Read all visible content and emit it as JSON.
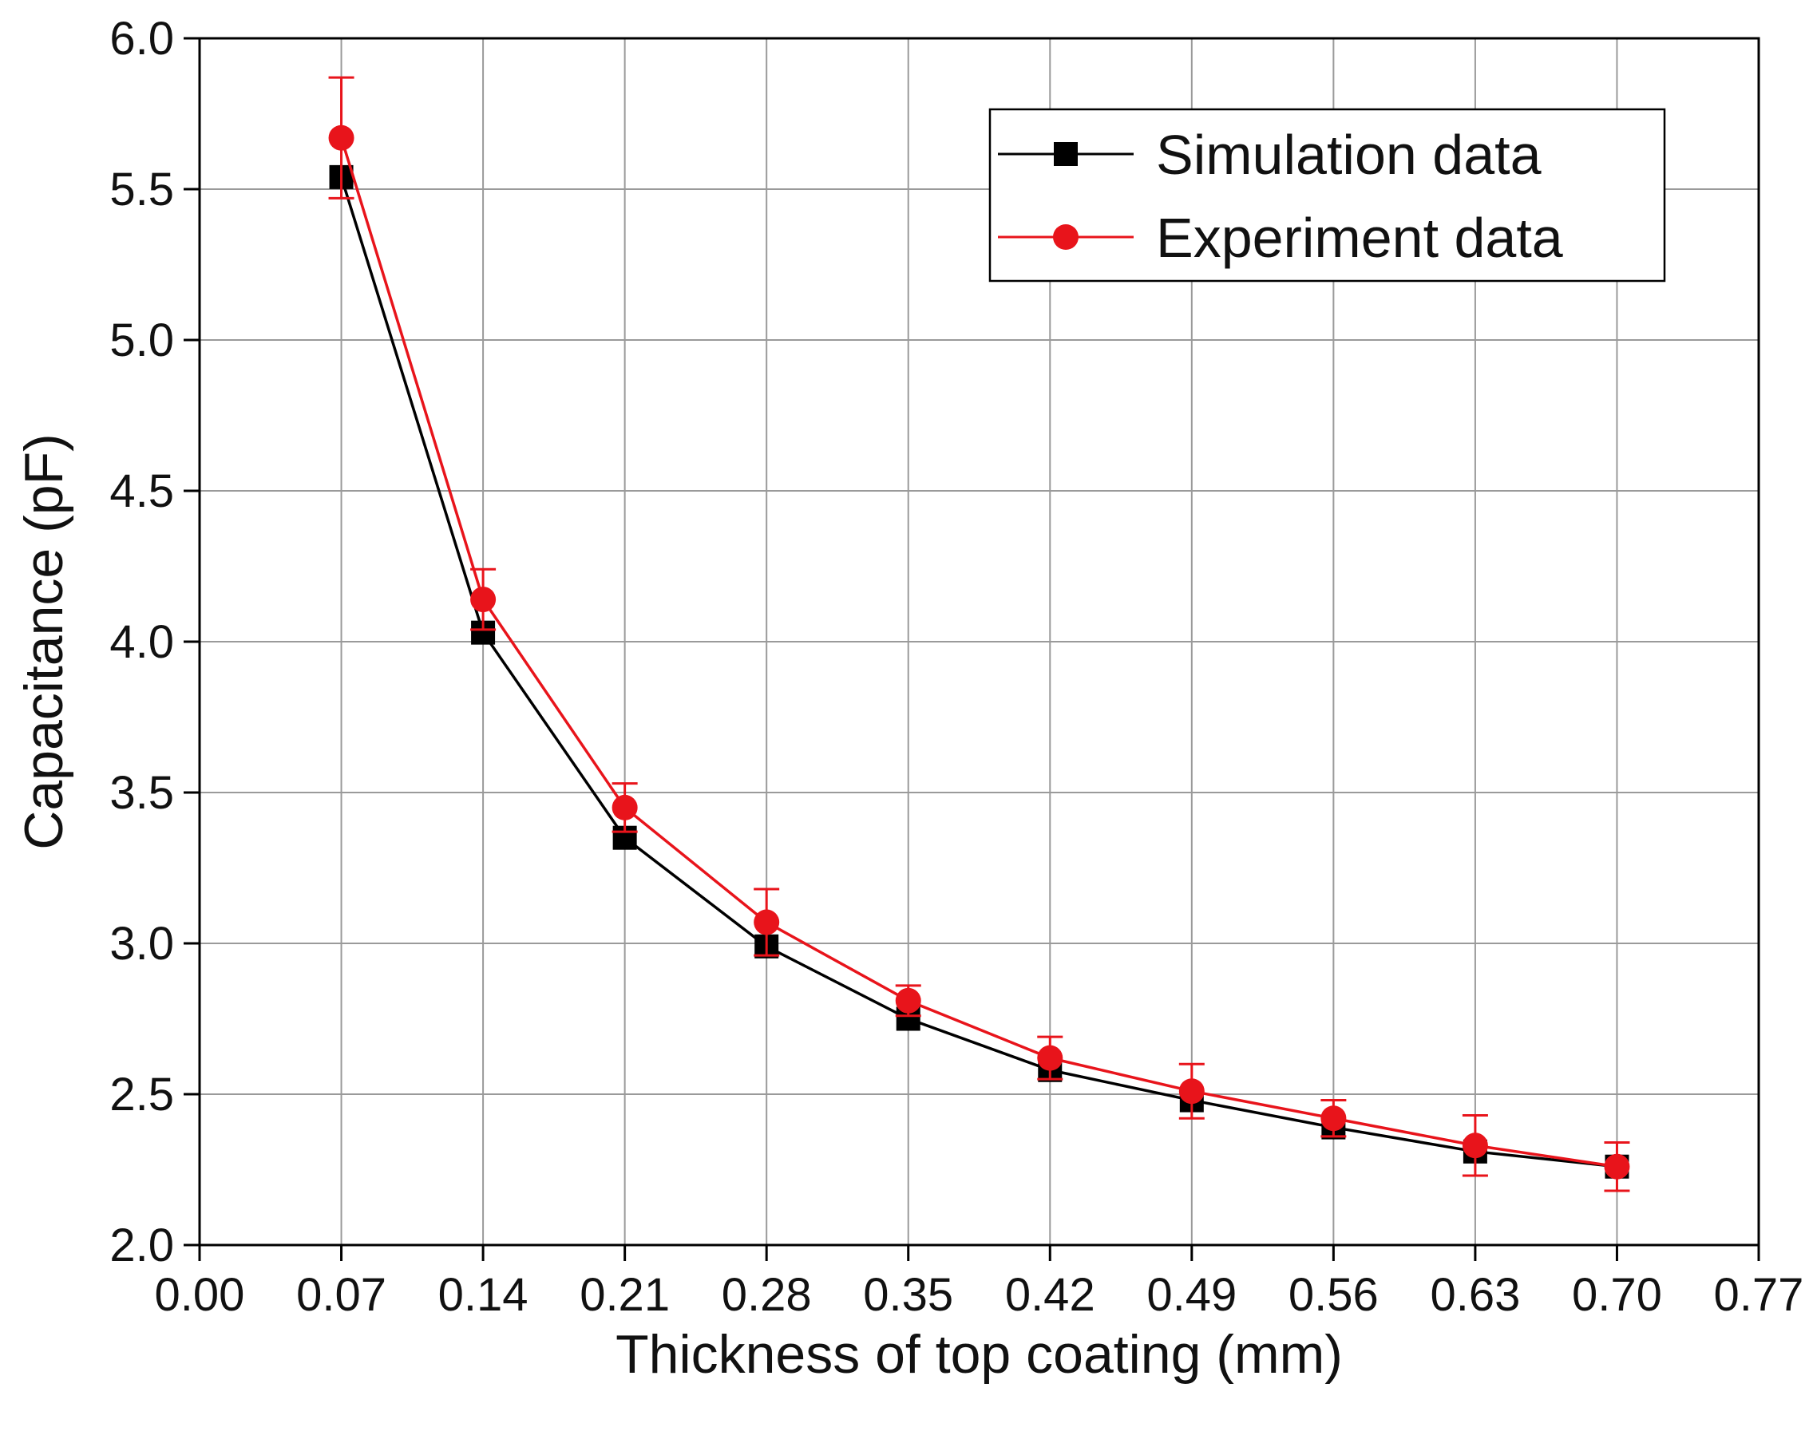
{
  "chart_data": {
    "type": "line",
    "title": "",
    "xlabel": "Thickness of top coating (mm)",
    "ylabel": "Capacitance (pF)",
    "xlim": [
      0.0,
      0.77
    ],
    "ylim": [
      2.0,
      6.0
    ],
    "grid": true,
    "legend_position": "top-right",
    "x_ticks": [
      0.0,
      0.07,
      0.14,
      0.21,
      0.28,
      0.35,
      0.42,
      0.49,
      0.56,
      0.63,
      0.7,
      0.77
    ],
    "x_tick_labels": [
      "0.00",
      "0.07",
      "0.14",
      "0.21",
      "0.28",
      "0.35",
      "0.42",
      "0.49",
      "0.56",
      "0.63",
      "0.70",
      "0.77"
    ],
    "y_ticks": [
      2.0,
      2.5,
      3.0,
      3.5,
      4.0,
      4.5,
      5.0,
      5.5,
      6.0
    ],
    "y_tick_labels": [
      "2.0",
      "2.5",
      "3.0",
      "3.5",
      "4.0",
      "4.5",
      "5.0",
      "5.5",
      "6.0"
    ],
    "x": [
      0.07,
      0.14,
      0.21,
      0.28,
      0.35,
      0.42,
      0.49,
      0.56,
      0.63,
      0.7
    ],
    "series": [
      {
        "name": "Simulation data",
        "color": "#000000",
        "marker": "square",
        "values": [
          5.54,
          4.03,
          3.35,
          2.99,
          2.75,
          2.58,
          2.48,
          2.39,
          2.31,
          2.26
        ]
      },
      {
        "name": "Experiment data",
        "color": "#e8141b",
        "marker": "circle",
        "values": [
          5.67,
          4.14,
          3.45,
          3.07,
          2.81,
          2.62,
          2.51,
          2.42,
          2.33,
          2.26
        ],
        "error": [
          0.2,
          0.1,
          0.08,
          0.11,
          0.05,
          0.07,
          0.09,
          0.06,
          0.1,
          0.08
        ]
      }
    ]
  }
}
